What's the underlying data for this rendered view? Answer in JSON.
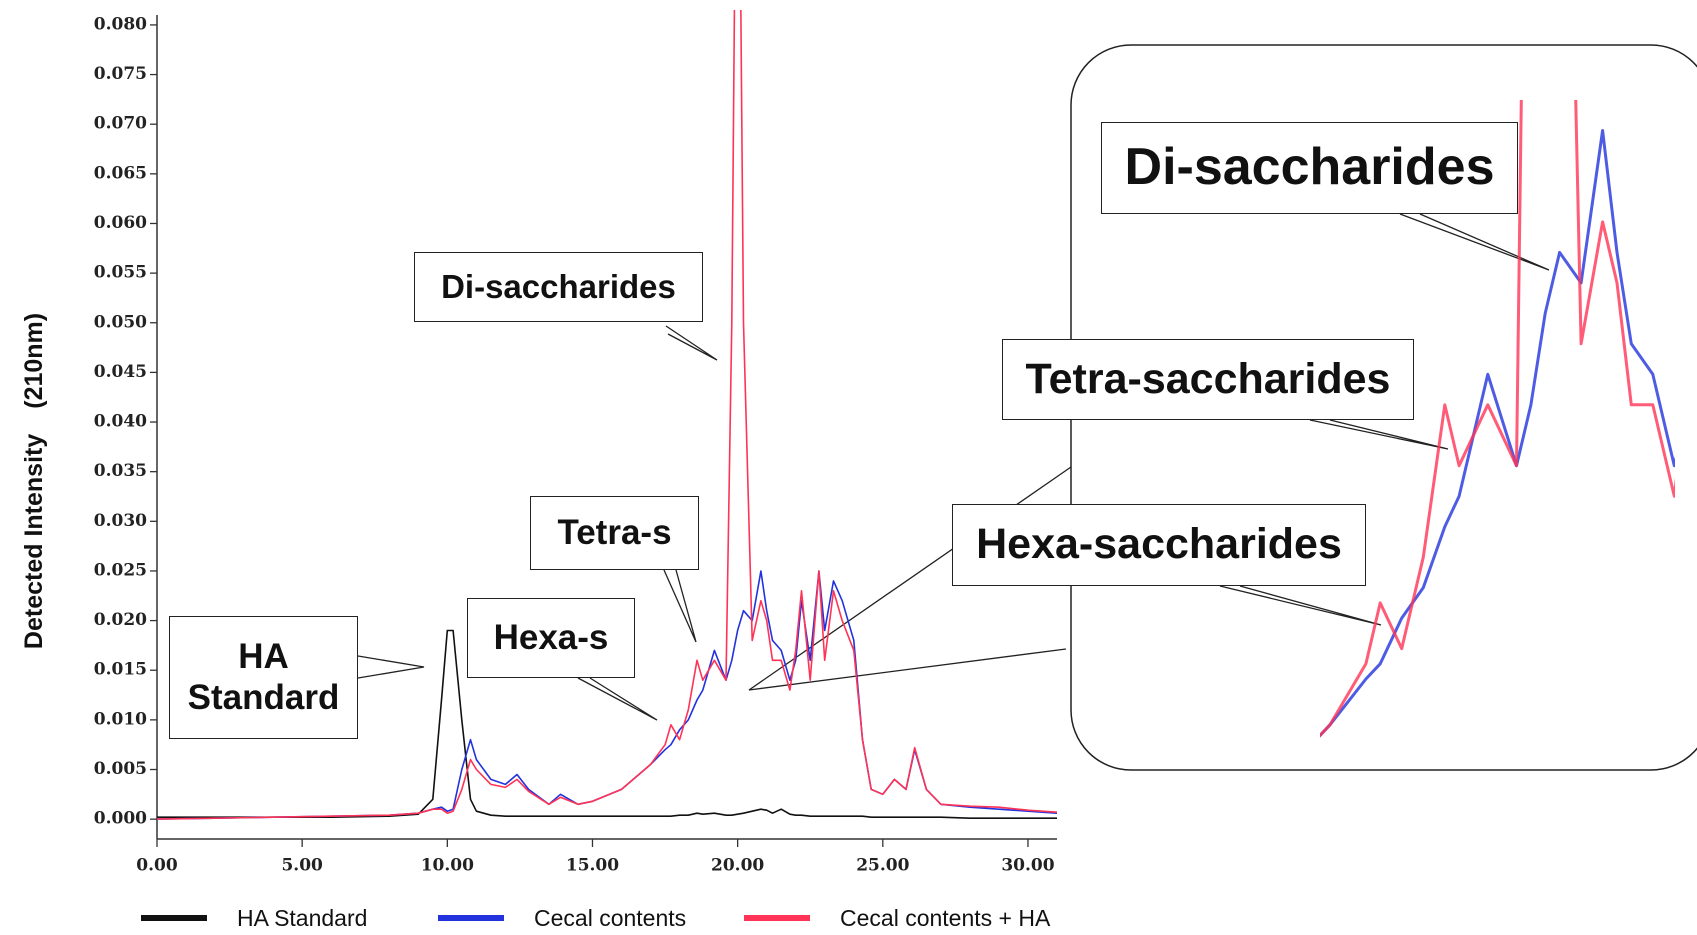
{
  "chart_data": {
    "type": "line",
    "y_label": "Detected Intensity　(210nm)",
    "x": [
      0,
      2,
      4,
      6,
      8,
      9,
      9.5,
      9.8,
      10,
      10.2,
      10.5,
      10.8,
      11,
      11.5,
      12,
      12.4,
      12.8,
      13.5,
      13.9,
      14.5,
      15,
      16,
      17,
      17.5,
      17.7,
      18,
      18.3,
      18.6,
      18.8,
      19.2,
      19.6,
      19.8,
      20,
      20.2,
      20.5,
      20.8,
      21,
      21.2,
      21.5,
      21.8,
      22,
      22.2,
      22.5,
      22.8,
      23,
      23.3,
      23.6,
      24,
      24.3,
      24.6,
      25,
      25.4,
      25.8,
      26.1,
      26.5,
      27,
      28,
      29,
      30,
      31
    ],
    "series": [
      {
        "name": "HA Standard",
        "color": "#111111",
        "values": [
          0.0002,
          0.0002,
          0.0002,
          0.0002,
          0.0003,
          0.0005,
          0.002,
          0.012,
          0.019,
          0.019,
          0.01,
          0.002,
          0.0008,
          0.0004,
          0.0003,
          0.0003,
          0.0003,
          0.0003,
          0.0003,
          0.0003,
          0.0003,
          0.0003,
          0.0003,
          0.0003,
          0.0003,
          0.0004,
          0.0004,
          0.0006,
          0.0005,
          0.0006,
          0.0004,
          0.0004,
          0.0005,
          0.0006,
          0.0008,
          0.001,
          0.0009,
          0.0006,
          0.001,
          0.0005,
          0.0004,
          0.0004,
          0.0003,
          0.0003,
          0.0003,
          0.0003,
          0.0003,
          0.0003,
          0.0003,
          0.0002,
          0.0002,
          0.0002,
          0.0002,
          0.0002,
          0.0002,
          0.0002,
          0.0001,
          0.0001,
          0.0001,
          0.0001
        ]
      },
      {
        "name": "Cecal contents",
        "color": "#2233dd",
        "values": [
          0,
          0.0001,
          0.0002,
          0.0003,
          0.0004,
          0.0006,
          0.001,
          0.0012,
          0.0008,
          0.001,
          0.005,
          0.008,
          0.006,
          0.004,
          0.0035,
          0.0045,
          0.003,
          0.0015,
          0.0025,
          0.0015,
          0.0018,
          0.003,
          0.0055,
          0.007,
          0.0075,
          0.009,
          0.01,
          0.012,
          0.013,
          0.017,
          0.014,
          0.016,
          0.019,
          0.021,
          0.02,
          0.025,
          0.021,
          0.018,
          0.017,
          0.014,
          0.016,
          0.022,
          0.016,
          0.025,
          0.019,
          0.024,
          0.022,
          0.018,
          0.008,
          0.003,
          0.0025,
          0.004,
          0.003,
          0.007,
          0.003,
          0.0015,
          0.0012,
          0.001,
          0.0008,
          0.0006
        ]
      },
      {
        "name": "Cecal contents + HA",
        "color": "#ff3355",
        "values": [
          0,
          0.0001,
          0.0002,
          0.0003,
          0.0004,
          0.0006,
          0.001,
          0.001,
          0.0006,
          0.0008,
          0.003,
          0.006,
          0.005,
          0.0035,
          0.0032,
          0.004,
          0.0028,
          0.0015,
          0.0022,
          0.0015,
          0.0018,
          0.003,
          0.0055,
          0.0075,
          0.0095,
          0.008,
          0.011,
          0.016,
          0.014,
          0.016,
          0.014,
          0.05,
          0.12,
          0.05,
          0.018,
          0.022,
          0.02,
          0.016,
          0.016,
          0.013,
          0.017,
          0.023,
          0.014,
          0.025,
          0.016,
          0.023,
          0.02,
          0.017,
          0.008,
          0.003,
          0.0025,
          0.004,
          0.003,
          0.0072,
          0.003,
          0.0015,
          0.0013,
          0.0012,
          0.0009,
          0.0007
        ]
      }
    ],
    "xlim": [
      0,
      31
    ],
    "ylim": [
      -0.002,
      0.081
    ],
    "xticks": [
      {
        "value": 0,
        "label": "0.00"
      },
      {
        "value": 5,
        "label": "5.00"
      },
      {
        "value": 10,
        "label": "10.00"
      },
      {
        "value": 15,
        "label": "15.00"
      },
      {
        "value": 20,
        "label": "20.00"
      },
      {
        "value": 25,
        "label": "25.00"
      },
      {
        "value": 30,
        "label": "30.00"
      }
    ],
    "yticks": [
      {
        "value": 0,
        "label": "0.000"
      },
      {
        "value": 0.005,
        "label": "0.005"
      },
      {
        "value": 0.01,
        "label": "0.010"
      },
      {
        "value": 0.015,
        "label": "0.015"
      },
      {
        "value": 0.02,
        "label": "0.020"
      },
      {
        "value": 0.025,
        "label": "0.025"
      },
      {
        "value": 0.03,
        "label": "0.030"
      },
      {
        "value": 0.035,
        "label": "0.035"
      },
      {
        "value": 0.04,
        "label": "0.040"
      },
      {
        "value": 0.045,
        "label": "0.045"
      },
      {
        "value": 0.05,
        "label": "0.050"
      },
      {
        "value": 0.055,
        "label": "0.055"
      },
      {
        "value": 0.06,
        "label": "0.060"
      },
      {
        "value": 0.065,
        "label": "0.065"
      },
      {
        "value": 0.07,
        "label": "0.070"
      },
      {
        "value": 0.075,
        "label": "0.075"
      },
      {
        "value": 0.08,
        "label": "0.080"
      }
    ],
    "annotations": [
      "Di-saccharides",
      "Tetra-s",
      "Hexa-s",
      "HA Standard"
    ],
    "inset_annotations": [
      "Di-saccharides",
      "Tetra-saccharides",
      "Hexa-saccharides"
    ]
  }
}
